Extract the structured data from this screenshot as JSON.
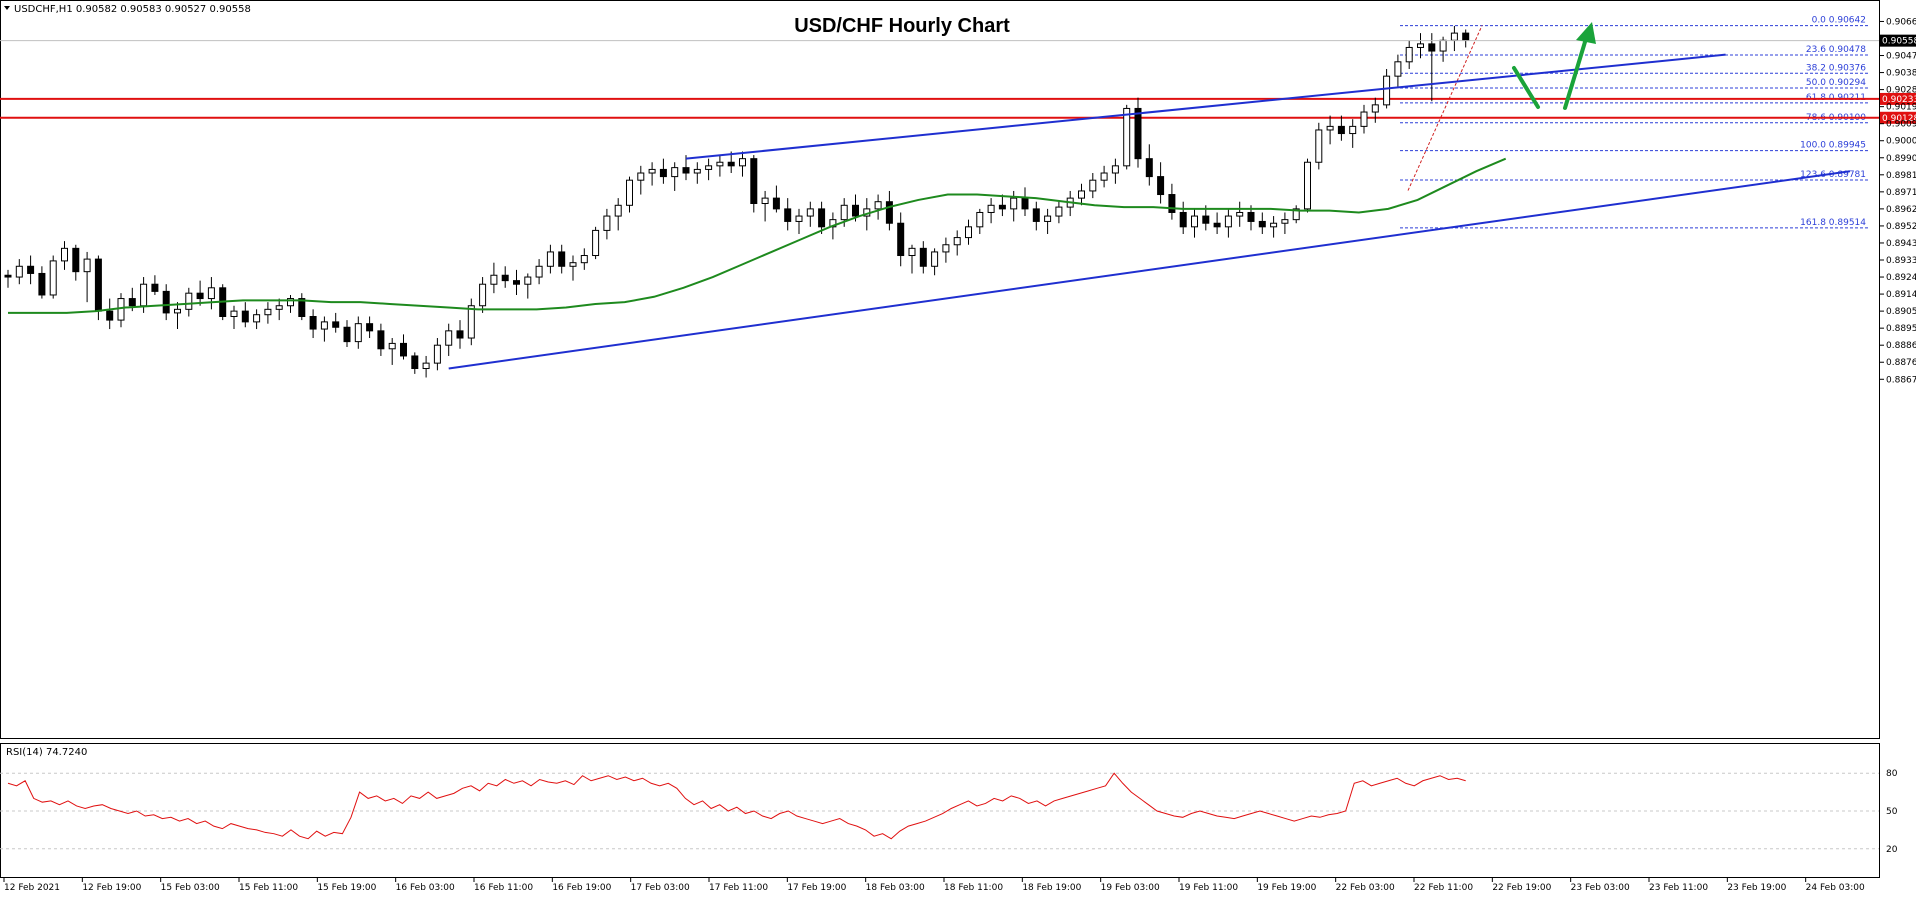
{
  "header": {
    "symbol_info": "USDCHF,H1  0.90582 0.90583 0.90527 0.90558",
    "title": "USD/CHF Hourly Chart"
  },
  "rsi_panel": {
    "label": "RSI(14) 74.7240",
    "levels": [
      80,
      50,
      20
    ],
    "ylim": [
      0,
      100
    ]
  },
  "colors": {
    "bull_body": "#ffffff",
    "bear_body": "#000000",
    "ma": "#1e8a1e",
    "trendline": "#1f2fd0",
    "resistance": "#e01010",
    "fib": "#2c3fd8",
    "arrow": "#1aa33a",
    "rsi_line": "#e01010",
    "grid": "#c8c8c8"
  },
  "chart_data": {
    "type": "candlestick",
    "ylim": [
      0.8667,
      0.9074
    ],
    "price_tick_labels": [
      "0.90665",
      "0.90570",
      "0.90475",
      "0.90380",
      "0.90285",
      "0.90190",
      "0.90095",
      "0.90000",
      "0.89905",
      "0.89810",
      "0.89715",
      "0.89620",
      "0.89525",
      "0.89430",
      "0.89335",
      "0.89240",
      "0.89145",
      "0.89050",
      "0.88955",
      "0.88860",
      "0.88765",
      "0.88670"
    ],
    "price_tick_values": [
      0.90665,
      0.9057,
      0.90475,
      0.9038,
      0.90285,
      0.9019,
      0.90095,
      0.9,
      0.89905,
      0.8981,
      0.89715,
      0.8962,
      0.89525,
      0.8943,
      0.89335,
      0.8924,
      0.89145,
      0.8905,
      0.88955,
      0.8886,
      0.88765,
      0.8867
    ],
    "time_labels": [
      "12 Feb 2021",
      "12 Feb 19:00",
      "15 Feb 03:00",
      "15 Feb 11:00",
      "15 Feb 19:00",
      "16 Feb 03:00",
      "16 Feb 11:00",
      "16 Feb 19:00",
      "17 Feb 03:00",
      "17 Feb 11:00",
      "17 Feb 19:00",
      "18 Feb 03:00",
      "18 Feb 11:00",
      "18 Feb 19:00",
      "19 Feb 03:00",
      "19 Feb 11:00",
      "19 Feb 19:00",
      "22 Feb 03:00",
      "22 Feb 11:00",
      "22 Feb 19:00",
      "23 Feb 03:00",
      "23 Feb 11:00",
      "23 Feb 19:00",
      "24 Feb 03:00"
    ],
    "current_price": "0.90558",
    "resistance_lines": [
      {
        "price": 0.90233,
        "label": "0.90233"
      },
      {
        "price": 0.90128,
        "label": "0.90128"
      }
    ],
    "fibonacci": [
      {
        "label": "0.0",
        "value": 0.90642,
        "text": "0.90642"
      },
      {
        "label": "23.6",
        "value": 0.90478,
        "text": "0.90478"
      },
      {
        "label": "38.2",
        "value": 0.90376,
        "text": "0.90376"
      },
      {
        "label": "50.0",
        "value": 0.90294,
        "text": "0.90294"
      },
      {
        "label": "61.8",
        "value": 0.90211,
        "text": "0.90211"
      },
      {
        "label": "78.6",
        "value": 0.901,
        "text": "0.90100"
      },
      {
        "label": "100.0",
        "value": 0.89945,
        "text": "0.89945"
      },
      {
        "label": "123.6",
        "value": 0.89781,
        "text": "0.89781"
      },
      {
        "label": "161.8",
        "value": 0.89514,
        "text": "0.89514"
      }
    ],
    "candles": [
      [
        0.8925,
        0.8928,
        0.8918,
        0.8924
      ],
      [
        0.8924,
        0.8934,
        0.892,
        0.893
      ],
      [
        0.893,
        0.8936,
        0.892,
        0.8926
      ],
      [
        0.8926,
        0.893,
        0.8912,
        0.8914
      ],
      [
        0.8914,
        0.8936,
        0.8912,
        0.8933
      ],
      [
        0.8933,
        0.8944,
        0.8928,
        0.894
      ],
      [
        0.894,
        0.8942,
        0.8922,
        0.8927
      ],
      [
        0.8927,
        0.8938,
        0.891,
        0.8934
      ],
      [
        0.8934,
        0.8936,
        0.89,
        0.8905
      ],
      [
        0.8905,
        0.8912,
        0.8895,
        0.89
      ],
      [
        0.89,
        0.8915,
        0.8896,
        0.8912
      ],
      [
        0.8912,
        0.8918,
        0.8905,
        0.8908
      ],
      [
        0.8908,
        0.8924,
        0.8904,
        0.892
      ],
      [
        0.892,
        0.8925,
        0.8914,
        0.8916
      ],
      [
        0.8916,
        0.892,
        0.89,
        0.8904
      ],
      [
        0.8904,
        0.891,
        0.8895,
        0.8906
      ],
      [
        0.8906,
        0.8918,
        0.8902,
        0.8915
      ],
      [
        0.8915,
        0.8922,
        0.8908,
        0.8912
      ],
      [
        0.8912,
        0.8924,
        0.8906,
        0.8918
      ],
      [
        0.8918,
        0.892,
        0.89,
        0.8902
      ],
      [
        0.8902,
        0.8908,
        0.8895,
        0.8905
      ],
      [
        0.8905,
        0.891,
        0.8896,
        0.8899
      ],
      [
        0.8899,
        0.8906,
        0.8895,
        0.8903
      ],
      [
        0.8903,
        0.891,
        0.8898,
        0.8906
      ],
      [
        0.8906,
        0.8912,
        0.89,
        0.8908
      ],
      [
        0.8908,
        0.8914,
        0.8904,
        0.8912
      ],
      [
        0.8912,
        0.8915,
        0.89,
        0.8902
      ],
      [
        0.8902,
        0.8906,
        0.889,
        0.8895
      ],
      [
        0.8895,
        0.8902,
        0.8888,
        0.8899
      ],
      [
        0.8899,
        0.8904,
        0.8893,
        0.8896
      ],
      [
        0.8896,
        0.89,
        0.8885,
        0.8888
      ],
      [
        0.8888,
        0.8902,
        0.8884,
        0.8898
      ],
      [
        0.8898,
        0.8902,
        0.889,
        0.8894
      ],
      [
        0.8894,
        0.8898,
        0.888,
        0.8884
      ],
      [
        0.8884,
        0.889,
        0.8875,
        0.8887
      ],
      [
        0.8887,
        0.8892,
        0.8878,
        0.888
      ],
      [
        0.888,
        0.8882,
        0.887,
        0.8873
      ],
      [
        0.8873,
        0.888,
        0.8868,
        0.8876
      ],
      [
        0.8876,
        0.889,
        0.8872,
        0.8886
      ],
      [
        0.8886,
        0.8898,
        0.888,
        0.8894
      ],
      [
        0.8894,
        0.89,
        0.8884,
        0.889
      ],
      [
        0.889,
        0.8912,
        0.8886,
        0.8908
      ],
      [
        0.8908,
        0.8924,
        0.8904,
        0.892
      ],
      [
        0.892,
        0.8932,
        0.8915,
        0.8925
      ],
      [
        0.8925,
        0.893,
        0.8918,
        0.8922
      ],
      [
        0.8922,
        0.8928,
        0.8914,
        0.892
      ],
      [
        0.892,
        0.8926,
        0.8912,
        0.8924
      ],
      [
        0.8924,
        0.8934,
        0.892,
        0.893
      ],
      [
        0.893,
        0.8942,
        0.8926,
        0.8938
      ],
      [
        0.8938,
        0.8942,
        0.8926,
        0.893
      ],
      [
        0.893,
        0.8936,
        0.8922,
        0.8932
      ],
      [
        0.8932,
        0.894,
        0.8928,
        0.8936
      ],
      [
        0.8936,
        0.8952,
        0.8934,
        0.895
      ],
      [
        0.895,
        0.8962,
        0.8945,
        0.8958
      ],
      [
        0.8958,
        0.8968,
        0.895,
        0.8964
      ],
      [
        0.8964,
        0.898,
        0.896,
        0.8978
      ],
      [
        0.8978,
        0.8986,
        0.897,
        0.8982
      ],
      [
        0.8982,
        0.8988,
        0.8975,
        0.8984
      ],
      [
        0.8984,
        0.899,
        0.8976,
        0.898
      ],
      [
        0.898,
        0.8988,
        0.8972,
        0.8985
      ],
      [
        0.8985,
        0.8992,
        0.8978,
        0.8982
      ],
      [
        0.8982,
        0.8988,
        0.8976,
        0.8984
      ],
      [
        0.8984,
        0.899,
        0.8978,
        0.8986
      ],
      [
        0.8986,
        0.8992,
        0.898,
        0.8988
      ],
      [
        0.8988,
        0.8994,
        0.8982,
        0.8986
      ],
      [
        0.8986,
        0.8994,
        0.898,
        0.899
      ],
      [
        0.899,
        0.8992,
        0.896,
        0.8965
      ],
      [
        0.8965,
        0.8972,
        0.8955,
        0.8968
      ],
      [
        0.8968,
        0.8975,
        0.896,
        0.8962
      ],
      [
        0.8962,
        0.8968,
        0.895,
        0.8955
      ],
      [
        0.8955,
        0.8962,
        0.8948,
        0.8958
      ],
      [
        0.8958,
        0.8966,
        0.8952,
        0.8962
      ],
      [
        0.8962,
        0.8966,
        0.8948,
        0.8952
      ],
      [
        0.8952,
        0.896,
        0.8945,
        0.8956
      ],
      [
        0.8956,
        0.8968,
        0.8952,
        0.8964
      ],
      [
        0.8964,
        0.897,
        0.8955,
        0.8958
      ],
      [
        0.8958,
        0.8968,
        0.895,
        0.8962
      ],
      [
        0.8962,
        0.897,
        0.8956,
        0.8966
      ],
      [
        0.8966,
        0.8972,
        0.895,
        0.8954
      ],
      [
        0.8954,
        0.896,
        0.893,
        0.8936
      ],
      [
        0.8936,
        0.8942,
        0.8926,
        0.894
      ],
      [
        0.894,
        0.8944,
        0.8926,
        0.893
      ],
      [
        0.893,
        0.894,
        0.8925,
        0.8938
      ],
      [
        0.8938,
        0.8946,
        0.8932,
        0.8942
      ],
      [
        0.8942,
        0.895,
        0.8936,
        0.8946
      ],
      [
        0.8946,
        0.8956,
        0.8942,
        0.8952
      ],
      [
        0.8952,
        0.8962,
        0.8948,
        0.896
      ],
      [
        0.896,
        0.8968,
        0.8954,
        0.8964
      ],
      [
        0.8964,
        0.897,
        0.8958,
        0.8962
      ],
      [
        0.8962,
        0.8972,
        0.8955,
        0.8968
      ],
      [
        0.8968,
        0.8974,
        0.8958,
        0.8962
      ],
      [
        0.8962,
        0.8966,
        0.895,
        0.8955
      ],
      [
        0.8955,
        0.8962,
        0.8948,
        0.8958
      ],
      [
        0.8958,
        0.8966,
        0.8954,
        0.8963
      ],
      [
        0.8963,
        0.8972,
        0.8958,
        0.8968
      ],
      [
        0.8968,
        0.8976,
        0.8964,
        0.8972
      ],
      [
        0.8972,
        0.8982,
        0.8968,
        0.8978
      ],
      [
        0.8978,
        0.8986,
        0.8974,
        0.8982
      ],
      [
        0.8982,
        0.899,
        0.8976,
        0.8986
      ],
      [
        0.8986,
        0.902,
        0.8984,
        0.9018
      ],
      [
        0.9018,
        0.9024,
        0.8985,
        0.899
      ],
      [
        0.899,
        0.8998,
        0.8975,
        0.898
      ],
      [
        0.898,
        0.8988,
        0.8965,
        0.897
      ],
      [
        0.897,
        0.8976,
        0.8956,
        0.896
      ],
      [
        0.896,
        0.8966,
        0.8948,
        0.8952
      ],
      [
        0.8952,
        0.8962,
        0.8946,
        0.8958
      ],
      [
        0.8958,
        0.8964,
        0.895,
        0.8954
      ],
      [
        0.8954,
        0.896,
        0.8948,
        0.8952
      ],
      [
        0.8952,
        0.8962,
        0.8946,
        0.8958
      ],
      [
        0.8958,
        0.8966,
        0.8952,
        0.896
      ],
      [
        0.896,
        0.8964,
        0.895,
        0.8955
      ],
      [
        0.8955,
        0.896,
        0.8948,
        0.8952
      ],
      [
        0.8952,
        0.8958,
        0.8946,
        0.8954
      ],
      [
        0.8954,
        0.896,
        0.8948,
        0.8956
      ],
      [
        0.8956,
        0.8964,
        0.8954,
        0.8962
      ],
      [
        0.8962,
        0.899,
        0.896,
        0.8988
      ],
      [
        0.8988,
        0.901,
        0.8984,
        0.9006
      ],
      [
        0.9006,
        0.9014,
        0.8998,
        0.9008
      ],
      [
        0.9008,
        0.9014,
        0.9,
        0.9004
      ],
      [
        0.9004,
        0.9012,
        0.8996,
        0.9008
      ],
      [
        0.9008,
        0.902,
        0.9004,
        0.9016
      ],
      [
        0.9016,
        0.9024,
        0.901,
        0.902
      ],
      [
        0.902,
        0.904,
        0.9018,
        0.9036
      ],
      [
        0.9036,
        0.9048,
        0.903,
        0.9044
      ],
      [
        0.9044,
        0.9056,
        0.904,
        0.9052
      ],
      [
        0.9052,
        0.906,
        0.9046,
        0.9054
      ],
      [
        0.9054,
        0.906,
        0.9022,
        0.905
      ],
      [
        0.905,
        0.9058,
        0.9044,
        0.9056
      ],
      [
        0.9056,
        0.9064,
        0.905,
        0.906
      ],
      [
        0.906,
        0.9062,
        0.9052,
        0.9056
      ]
    ],
    "ma": [
      0.8904,
      0.8904,
      0.8904,
      0.8905,
      0.8907,
      0.8908,
      0.8909,
      0.891,
      0.8911,
      0.8911,
      0.8911,
      0.891,
      0.891,
      0.8909,
      0.8908,
      0.8907,
      0.8906,
      0.8906,
      0.8906,
      0.8907,
      0.8909,
      0.891,
      0.8913,
      0.8918,
      0.8924,
      0.8931,
      0.8938,
      0.8945,
      0.8952,
      0.8958,
      0.8963,
      0.8967,
      0.897,
      0.897,
      0.8969,
      0.8968,
      0.8966,
      0.8964,
      0.8963,
      0.8963,
      0.8962,
      0.8962,
      0.8962,
      0.8962,
      0.8961,
      0.8961,
      0.896,
      0.8962,
      0.8967,
      0.8975,
      0.8983,
      0.899
    ],
    "trendlines": [
      {
        "from": [
          39,
          0.8873
        ],
        "to": [
          163,
          0.8983
        ]
      },
      {
        "from": [
          60,
          0.899
        ],
        "to": [
          152,
          0.9048
        ]
      }
    ],
    "rsi": [
      72,
      70,
      74,
      60,
      57,
      58,
      55,
      58,
      54,
      52,
      54,
      55,
      52,
      50,
      48,
      50,
      46,
      47,
      44,
      45,
      42,
      44,
      40,
      42,
      38,
      36,
      40,
      38,
      36,
      35,
      33,
      32,
      30,
      35,
      30,
      28,
      34,
      30,
      33,
      32,
      45,
      65,
      60,
      62,
      58,
      60,
      56,
      62,
      60,
      65,
      60,
      62,
      64,
      68,
      70,
      66,
      72,
      70,
      75,
      72,
      74,
      70,
      75,
      73,
      72,
      74,
      71,
      78,
      74,
      76,
      78,
      75,
      77,
      74,
      76,
      72,
      70,
      72,
      68,
      60,
      55,
      58,
      52,
      55,
      50,
      53,
      48,
      50,
      46,
      44,
      48,
      50,
      46,
      44,
      42,
      40,
      42,
      44,
      40,
      38,
      35,
      30,
      32,
      28,
      34,
      38,
      40,
      42,
      45,
      48,
      52,
      55,
      58,
      54,
      56,
      60,
      58,
      62,
      60,
      56,
      58,
      54,
      58,
      60,
      62,
      64,
      66,
      68,
      70,
      80,
      72,
      65,
      60,
      55,
      50,
      48,
      46,
      45,
      48,
      50,
      48,
      46,
      45,
      44,
      46,
      48,
      50,
      48,
      46,
      44,
      42,
      44,
      46,
      45,
      47,
      48,
      50,
      72,
      74,
      70,
      72,
      74,
      76,
      72,
      70,
      74,
      76,
      78,
      75,
      76,
      74
    ]
  }
}
